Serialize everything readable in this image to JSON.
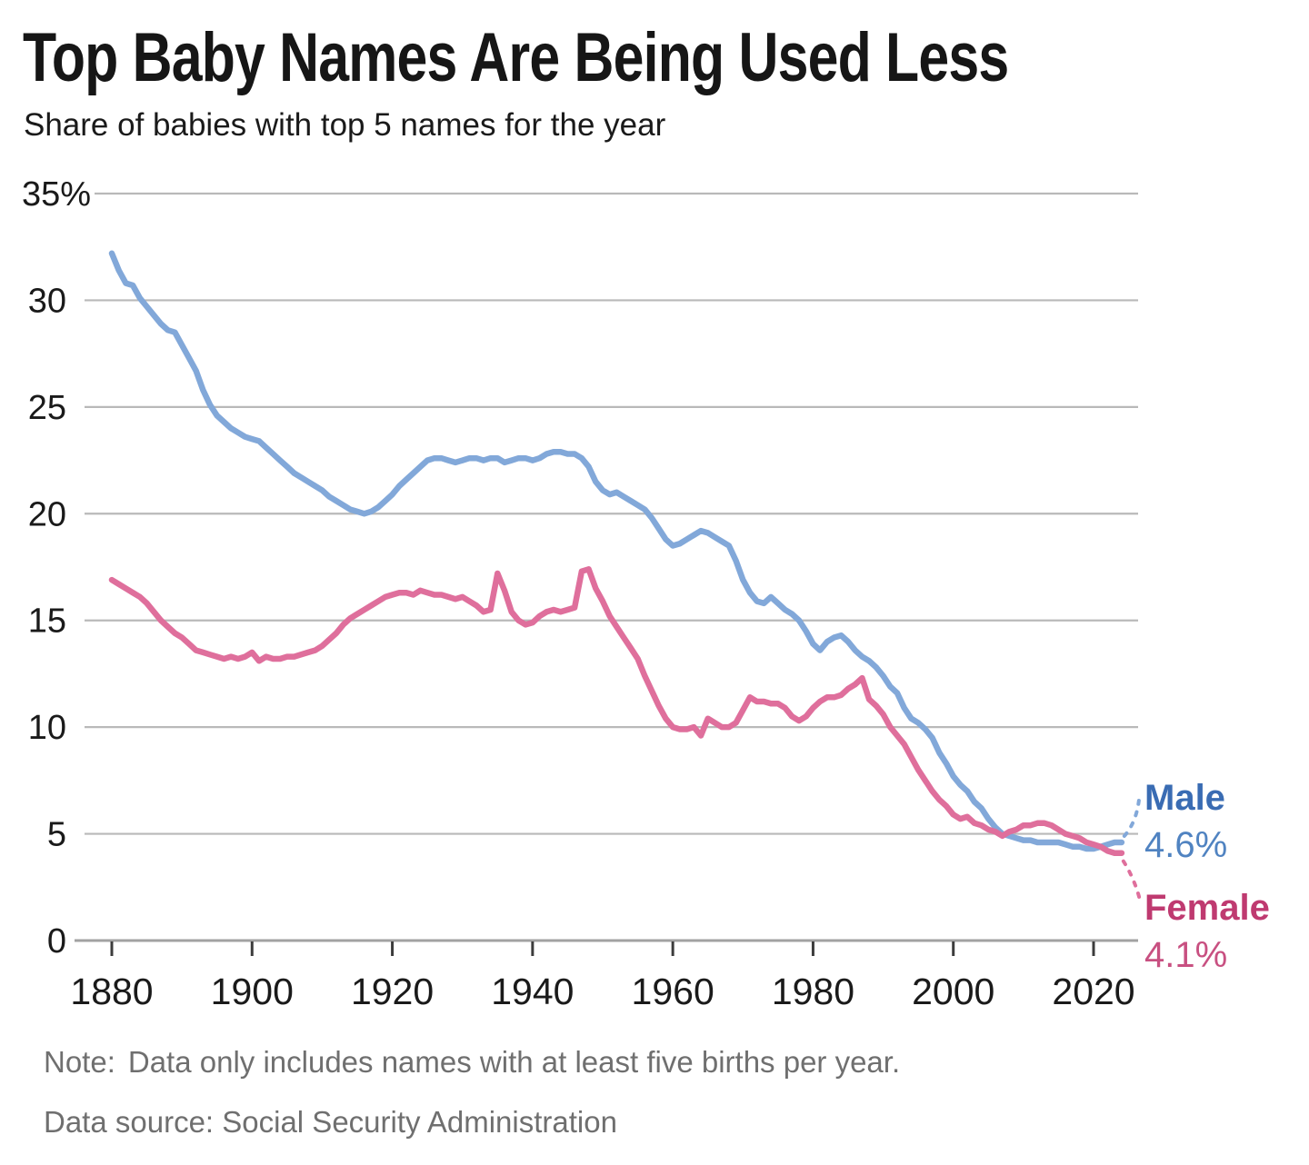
{
  "header": {
    "title": "Top Baby Names Are Being Used Less",
    "subtitle": "Share of babies with top 5 names for the year"
  },
  "footer": {
    "note_label": "Note:",
    "note_text": "Data only includes names with at least five births per year.",
    "source": "Data source: Social Security Administration"
  },
  "chart_data": {
    "type": "line",
    "title": "Top Baby Names Are Being Used Less",
    "subtitle": "Share of babies with top 5 names for the year",
    "grid": "horizontal",
    "legend_position": "end-of-line-labels",
    "x_axis": {
      "start_year": 1880,
      "end_year": 2024,
      "step": 1,
      "tick_years": [
        1880,
        1900,
        1920,
        1940,
        1960,
        1980,
        2000,
        2020
      ]
    },
    "y_axis": {
      "range": [
        0,
        35
      ],
      "unit": "percent",
      "ticks": [
        {
          "value": 35,
          "label": "35%"
        },
        {
          "value": 30,
          "label": "30"
        },
        {
          "value": 25,
          "label": "25"
        },
        {
          "value": 20,
          "label": "20"
        },
        {
          "value": 15,
          "label": "15"
        },
        {
          "value": 10,
          "label": "10"
        },
        {
          "value": 5,
          "label": "5"
        },
        {
          "value": 0,
          "label": "0"
        }
      ]
    },
    "series": [
      {
        "name": "Male",
        "line_color": "#82a8d9",
        "label_color": "#3a6cb3",
        "value_color": "#5083c1",
        "end_label": "Male",
        "end_value_label": "4.6%",
        "end_value": 4.6,
        "values": [
          32.2,
          31.4,
          30.8,
          30.7,
          30.1,
          29.7,
          29.3,
          28.9,
          28.6,
          28.5,
          27.9,
          27.3,
          26.7,
          25.8,
          25.1,
          24.6,
          24.3,
          24.0,
          23.8,
          23.6,
          23.5,
          23.4,
          23.1,
          22.8,
          22.5,
          22.2,
          21.9,
          21.7,
          21.5,
          21.3,
          21.1,
          20.8,
          20.6,
          20.4,
          20.2,
          20.1,
          20.0,
          20.1,
          20.3,
          20.6,
          20.9,
          21.3,
          21.6,
          21.9,
          22.2,
          22.5,
          22.6,
          22.6,
          22.5,
          22.4,
          22.5,
          22.6,
          22.6,
          22.5,
          22.6,
          22.6,
          22.4,
          22.5,
          22.6,
          22.6,
          22.5,
          22.6,
          22.8,
          22.9,
          22.9,
          22.8,
          22.8,
          22.6,
          22.2,
          21.5,
          21.1,
          20.9,
          21.0,
          20.8,
          20.6,
          20.4,
          20.2,
          19.8,
          19.3,
          18.8,
          18.5,
          18.6,
          18.8,
          19.0,
          19.2,
          19.1,
          18.9,
          18.7,
          18.5,
          17.8,
          16.9,
          16.3,
          15.9,
          15.8,
          16.1,
          15.8,
          15.5,
          15.3,
          15.0,
          14.5,
          13.9,
          13.6,
          14.0,
          14.2,
          14.3,
          14.0,
          13.6,
          13.3,
          13.1,
          12.8,
          12.4,
          11.9,
          11.6,
          10.9,
          10.4,
          10.2,
          9.9,
          9.5,
          8.8,
          8.3,
          7.7,
          7.3,
          7.0,
          6.5,
          6.2,
          5.7,
          5.3,
          5.0,
          4.9,
          4.8,
          4.7,
          4.7,
          4.6,
          4.6,
          4.6,
          4.6,
          4.5,
          4.4,
          4.4,
          4.3,
          4.3,
          4.4,
          4.5,
          4.6,
          4.6
        ]
      },
      {
        "name": "Female",
        "line_color": "#df6f9c",
        "label_color": "#bf3a70",
        "value_color": "#c85081",
        "end_label": "Female",
        "end_value_label": "4.1%",
        "end_value": 4.1,
        "values": [
          16.9,
          16.7,
          16.5,
          16.3,
          16.1,
          15.8,
          15.4,
          15.0,
          14.7,
          14.4,
          14.2,
          13.9,
          13.6,
          13.5,
          13.4,
          13.3,
          13.2,
          13.3,
          13.2,
          13.3,
          13.5,
          13.1,
          13.3,
          13.2,
          13.2,
          13.3,
          13.3,
          13.4,
          13.5,
          13.6,
          13.8,
          14.1,
          14.4,
          14.8,
          15.1,
          15.3,
          15.5,
          15.7,
          15.9,
          16.1,
          16.2,
          16.3,
          16.3,
          16.2,
          16.4,
          16.3,
          16.2,
          16.2,
          16.1,
          16.0,
          16.1,
          15.9,
          15.7,
          15.4,
          15.5,
          17.2,
          16.4,
          15.4,
          15.0,
          14.8,
          14.9,
          15.2,
          15.4,
          15.5,
          15.4,
          15.5,
          15.6,
          17.3,
          17.4,
          16.5,
          15.9,
          15.2,
          14.7,
          14.2,
          13.7,
          13.2,
          12.4,
          11.7,
          11.0,
          10.4,
          10.0,
          9.9,
          9.9,
          10.0,
          9.6,
          10.4,
          10.2,
          10.0,
          10.0,
          10.2,
          10.8,
          11.4,
          11.2,
          11.2,
          11.1,
          11.1,
          10.9,
          10.5,
          10.3,
          10.5,
          10.9,
          11.2,
          11.4,
          11.4,
          11.5,
          11.8,
          12.0,
          12.3,
          11.3,
          11.0,
          10.6,
          10.0,
          9.6,
          9.2,
          8.6,
          8.0,
          7.5,
          7.0,
          6.6,
          6.3,
          5.9,
          5.7,
          5.8,
          5.5,
          5.4,
          5.2,
          5.1,
          4.9,
          5.1,
          5.2,
          5.4,
          5.4,
          5.5,
          5.5,
          5.4,
          5.2,
          5.0,
          4.9,
          4.8,
          4.6,
          4.5,
          4.4,
          4.2,
          4.1,
          4.1
        ]
      }
    ],
    "style": {
      "gridline_color": "#b9b9b9",
      "axis_color": "#a2a2a2",
      "tick_color": "#3c3c3c",
      "tick_label_color": "#1a1a1a"
    }
  }
}
